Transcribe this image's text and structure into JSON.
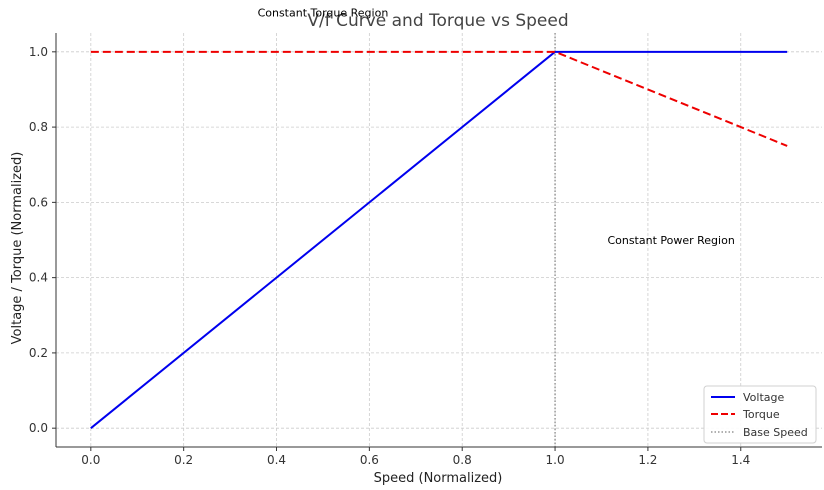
{
  "chart_data": {
    "type": "line",
    "title": "V/f Curve and Torque vs Speed",
    "xlabel": "Speed (Normalized)",
    "ylabel": "Voltage / Torque (Normalized)",
    "xlim": [
      -0.075,
      1.575
    ],
    "ylim": [
      -0.05,
      1.05
    ],
    "xticks": [
      0.0,
      0.2,
      0.4,
      0.6,
      0.8,
      1.0,
      1.2,
      1.4
    ],
    "yticks": [
      0.0,
      0.2,
      0.4,
      0.6,
      0.8,
      1.0
    ],
    "xtick_labels": [
      "0.0",
      "0.2",
      "0.4",
      "0.6",
      "0.8",
      "1.0",
      "1.2",
      "1.4"
    ],
    "ytick_labels": [
      "0.0",
      "0.2",
      "0.4",
      "0.6",
      "0.8",
      "1.0"
    ],
    "grid": true,
    "legend_position": "bottom-right",
    "series": [
      {
        "name": "Voltage",
        "color": "#0000ee",
        "dash": "solid",
        "x": [
          0.0,
          1.0,
          1.5
        ],
        "y": [
          0.0,
          1.0,
          1.0
        ]
      },
      {
        "name": "Torque",
        "color": "#ee0000",
        "dash": "dashed",
        "x": [
          0.0,
          1.0,
          1.5
        ],
        "y": [
          1.0,
          1.0,
          0.75
        ]
      }
    ],
    "vline": {
      "name": "Base Speed",
      "x": 1.0,
      "color": "#808080",
      "dash": "dotted"
    },
    "annotations": [
      {
        "text": "Constant Torque Region",
        "x": 0.5,
        "y": 1.105
      },
      {
        "text": "Constant Power Region",
        "x": 1.25,
        "y": 0.5
      }
    ]
  }
}
